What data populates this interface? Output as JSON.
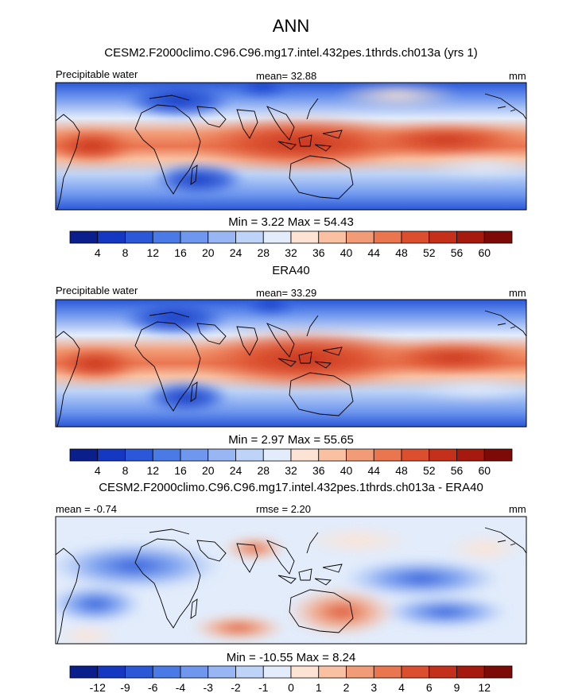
{
  "page": {
    "title": "ANN"
  },
  "panels": [
    {
      "subtitle": "CESM2.F2000climo.C96.C96.mg17.intel.432pes.1thrds.ch013a (yrs 1)",
      "left_label": "Precipitable water",
      "center_label": "mean=  32.88",
      "right_label": "mm",
      "minmax": "Min =   3.22 Max =  54.43"
    },
    {
      "subtitle": "ERA40",
      "left_label": "Precipitable water",
      "center_label": "mean=  33.29",
      "right_label": "mm",
      "minmax": "Min =   2.97 Max =  55.65"
    },
    {
      "subtitle": "CESM2.F2000climo.C96.C96.mg17.intel.432pes.1thrds.ch013a - ERA40",
      "left_label": "mean =  -0.74",
      "center_label": "rmse =   2.20",
      "right_label": "mm",
      "minmax": "Min = -10.55 Max =   8.24"
    }
  ],
  "colorbars": {
    "field_ticks": [
      "4",
      "8",
      "12",
      "16",
      "20",
      "24",
      "28",
      "32",
      "36",
      "40",
      "44",
      "48",
      "52",
      "56",
      "60"
    ],
    "diff_ticks": [
      "-12",
      "-9",
      "-6",
      "-4",
      "-3",
      "-2",
      "-1",
      "0",
      "1",
      "2",
      "3",
      "4",
      "6",
      "9",
      "12"
    ],
    "colors": [
      "#0b1f8c",
      "#1538c2",
      "#2a58d8",
      "#4a7ae6",
      "#6f97ee",
      "#97b6f3",
      "#bdd3f7",
      "#e2ecfb",
      "#fde3d3",
      "#f9c1a2",
      "#f29c77",
      "#ea7650",
      "#dc4f2e",
      "#c5301a",
      "#a51a0c",
      "#7d0a06"
    ]
  }
}
